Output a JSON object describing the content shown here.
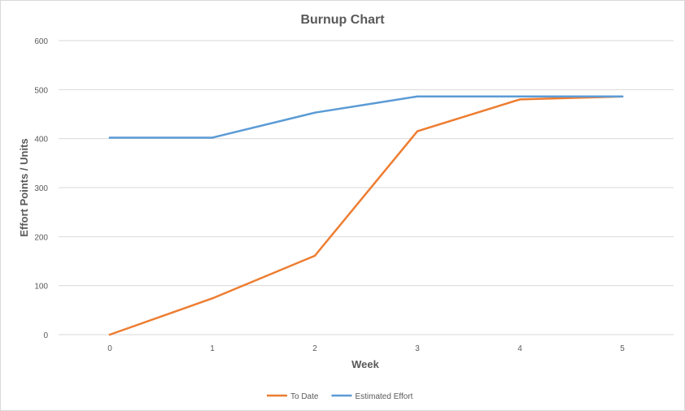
{
  "chart_data": {
    "type": "line",
    "title": "Burnup Chart",
    "xlabel": "Week",
    "ylabel": "Effort Points / Units",
    "x": [
      0,
      1,
      2,
      3,
      4,
      5
    ],
    "ylim": [
      0,
      600
    ],
    "yticks": [
      0,
      100,
      200,
      300,
      400,
      500,
      600
    ],
    "grid": true,
    "legend_position": "bottom",
    "series": [
      {
        "name": "To Date",
        "color": "#ed7d31",
        "values": [
          0,
          74,
          161,
          415,
          480,
          486
        ]
      },
      {
        "name": "Estimated Effort",
        "color": "#5b9bd5",
        "values": [
          402,
          402,
          453,
          486,
          486,
          486
        ]
      }
    ]
  }
}
